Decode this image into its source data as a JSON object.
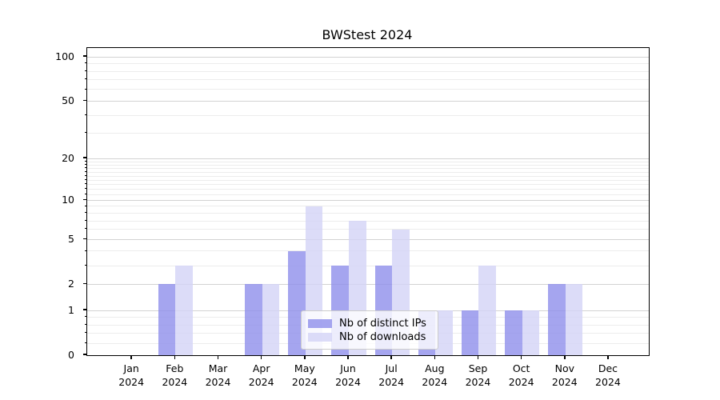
{
  "chart_data": {
    "type": "bar",
    "title": "BWStest 2024",
    "x_categories": [
      "Jan",
      "Feb",
      "Mar",
      "Apr",
      "May",
      "Jun",
      "Jul",
      "Aug",
      "Sep",
      "Oct",
      "Nov",
      "Dec"
    ],
    "x_year_label": "2024",
    "series": [
      {
        "name": "Nb of distinct IPs",
        "color": "#9191eb",
        "values": [
          0,
          2,
          0,
          2,
          4,
          3,
          3,
          1,
          1,
          1,
          2,
          0
        ]
      },
      {
        "name": "Nb of downloads",
        "color": "#d4d4f6",
        "values": [
          0,
          3,
          0,
          2,
          9,
          7,
          6,
          1,
          3,
          1,
          2,
          0
        ]
      }
    ],
    "bar_opacity": 0.82,
    "y_scale": "log1p",
    "ylim": [
      0,
      115
    ],
    "y_major_ticks": [
      0,
      1,
      2,
      5,
      10,
      20,
      50,
      100
    ],
    "y_minor_ticks": [
      0.2,
      0.4,
      0.6,
      0.8,
      3,
      4,
      6,
      7,
      8,
      9,
      11,
      12,
      13,
      14,
      15,
      16,
      17,
      18,
      19,
      30,
      40,
      60,
      70,
      80,
      90
    ],
    "grid": true,
    "legend_position": "lower center",
    "colors": {
      "background": "#ffffff",
      "text": "#000000",
      "spine": "#000000",
      "grid_major": "#d2d2d2",
      "grid_minor": "#ececec",
      "legend_border": "#cccccc",
      "legend_bg": "rgba(255,255,255,0.8)"
    }
  }
}
